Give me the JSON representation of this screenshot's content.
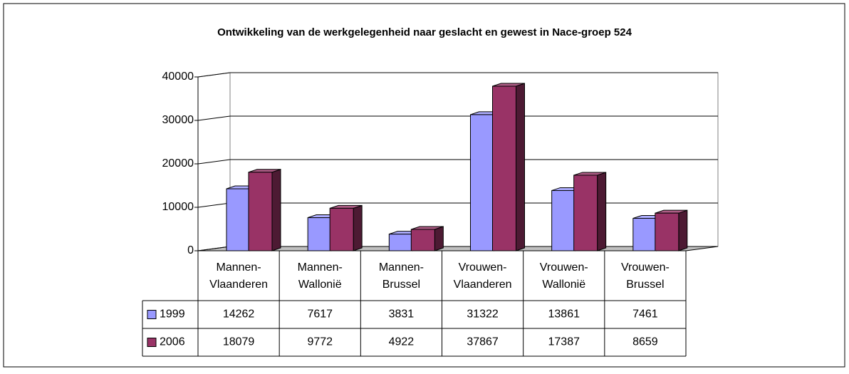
{
  "chart_data": {
    "type": "bar3d",
    "title": "Ontwikkeling van de werkgelegenheid naar geslacht en gewest in Nace-groep 524",
    "categories": [
      [
        "Mannen-",
        "Vlaanderen"
      ],
      [
        "Mannen-",
        "Wallonië"
      ],
      [
        "Mannen-",
        "Brussel"
      ],
      [
        "Vrouwen-",
        "Vlaanderen"
      ],
      [
        "Vrouwen-",
        "Wallonië"
      ],
      [
        "Vrouwen-",
        "Brussel"
      ]
    ],
    "series": [
      {
        "name": "1999",
        "color": "#9999ff",
        "values": [
          14262,
          7617,
          3831,
          31322,
          13861,
          7461
        ]
      },
      {
        "name": "2006",
        "color": "#993366",
        "values": [
          18079,
          9772,
          4922,
          37867,
          17387,
          8659
        ]
      }
    ],
    "ylim": [
      0,
      40000
    ],
    "yticks": [
      0,
      10000,
      20000,
      30000,
      40000
    ],
    "grid": true
  }
}
